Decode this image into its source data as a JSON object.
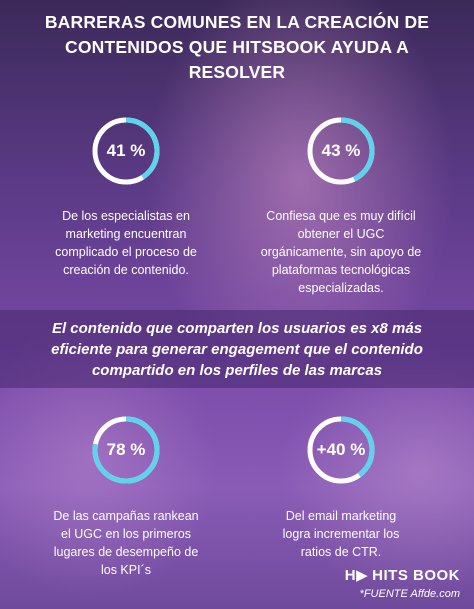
{
  "title_lines": [
    "BARRERAS COMUNES EN LA CREACIÓN DE",
    "CONTENIDOS QUE HITSBOOK AYUDA A",
    "RESOLVER"
  ],
  "colors": {
    "ring_accent": "#5fd3ec",
    "ring_track": "#ffffff"
  },
  "stats": [
    {
      "value": "41 %",
      "fraction": 0.41,
      "description": [
        "De los especialistas en",
        "marketing encuentran",
        "complicado el proceso de",
        "creación de contenido."
      ]
    },
    {
      "value": "43 %",
      "fraction": 0.43,
      "description": [
        "Confiesa que es muy difícil",
        "obtener el UGC",
        "orgánicamente, sin apoyo de",
        "plataformas tecnológicas",
        "especializadas."
      ]
    },
    {
      "value": "78 %",
      "fraction": 0.78,
      "description": [
        "De las campañas rankean",
        "el UGC en los primeros",
        "lugares de desempeño de",
        "los KPI´s"
      ]
    },
    {
      "value": "+40 %",
      "fraction": 0.4,
      "description": [
        "Del email marketing",
        "logra incrementar los",
        "ratios de CTR."
      ]
    }
  ],
  "banner_lines": [
    "El contenido que comparten los usuarios es x8 más",
    "eficiente para generar engagement que el contenido",
    "compartido en los perfiles de las marcas"
  ],
  "brand": {
    "logo_mark": "H▶",
    "name": "HITS BOOK"
  },
  "source": "*FUENTE Affde.com"
}
